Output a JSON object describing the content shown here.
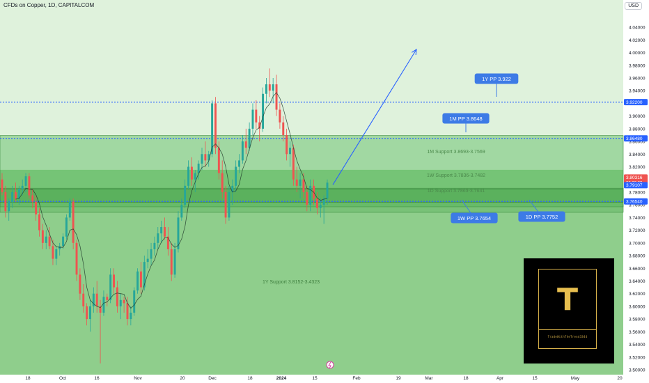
{
  "header": {
    "title": "CFDs on Copper, 1D, CAPITALCOM",
    "currency": "USD"
  },
  "colors": {
    "up": "#26a69a",
    "down": "#ef5350",
    "bg": "#dff2dc",
    "zone": "#8fce8c",
    "line_blue": "#2962ff",
    "label_blue": "#3d7be6",
    "logo_gold": "#e7be4f"
  },
  "watermark": {
    "letter": "T",
    "caption": "TradeWithTheTrend3344"
  },
  "chart_data": {
    "type": "candlestick",
    "title": "CFDs on Copper, 1D, CAPITALCOM",
    "ylim": [
      3.5,
      4.05
    ],
    "y_ticks": [
      "4.04000",
      "4.02000",
      "4.00000",
      "3.98000",
      "3.96000",
      "3.94000",
      "3.92000",
      "3.90000",
      "3.88000",
      "3.86000",
      "3.84000",
      "3.82000",
      "3.80000",
      "3.78000",
      "3.76000",
      "3.74000",
      "3.72000",
      "3.70000",
      "3.68000",
      "3.66000",
      "3.64000",
      "3.62000",
      "3.60000",
      "3.58000",
      "3.56000",
      "3.54000",
      "3.52000",
      "3.50000"
    ],
    "x_ticks": [
      "18",
      "Oct",
      "16",
      "Nov",
      "20",
      "Dec",
      "18",
      "2024",
      "15",
      "Feb",
      "19",
      "Mar",
      "18",
      "Apr",
      "15",
      "May",
      "20"
    ],
    "x_ticks_bold": [
      "2024"
    ],
    "candles_ohlc": [
      [
        3.8,
        3.81,
        3.775,
        3.78
      ],
      [
        3.78,
        3.79,
        3.74,
        3.75
      ],
      [
        3.75,
        3.77,
        3.735,
        3.765
      ],
      [
        3.765,
        3.79,
        3.755,
        3.78
      ],
      [
        3.78,
        3.795,
        3.765,
        3.77
      ],
      [
        3.77,
        3.79,
        3.76,
        3.785
      ],
      [
        3.785,
        3.8,
        3.775,
        3.79
      ],
      [
        3.79,
        3.81,
        3.78,
        3.805
      ],
      [
        3.805,
        3.81,
        3.77,
        3.775
      ],
      [
        3.775,
        3.785,
        3.755,
        3.765
      ],
      [
        3.765,
        3.775,
        3.735,
        3.745
      ],
      [
        3.745,
        3.755,
        3.71,
        3.72
      ],
      [
        3.72,
        3.73,
        3.69,
        3.7
      ],
      [
        3.7,
        3.72,
        3.69,
        3.71
      ],
      [
        3.71,
        3.725,
        3.69,
        3.695
      ],
      [
        3.695,
        3.705,
        3.665,
        3.675
      ],
      [
        3.675,
        3.695,
        3.665,
        3.69
      ],
      [
        3.69,
        3.7,
        3.68,
        3.695
      ],
      [
        3.695,
        3.715,
        3.69,
        3.71
      ],
      [
        3.71,
        3.745,
        3.705,
        3.74
      ],
      [
        3.74,
        3.77,
        3.735,
        3.765
      ],
      [
        3.765,
        3.77,
        3.69,
        3.7
      ],
      [
        3.7,
        3.705,
        3.64,
        3.65
      ],
      [
        3.65,
        3.66,
        3.61,
        3.62
      ],
      [
        3.62,
        3.635,
        3.59,
        3.6
      ],
      [
        3.6,
        3.605,
        3.57,
        3.58
      ],
      [
        3.58,
        3.61,
        3.56,
        3.6
      ],
      [
        3.6,
        3.63,
        3.59,
        3.62
      ],
      [
        3.62,
        3.64,
        3.59,
        3.6
      ],
      [
        3.6,
        3.61,
        3.51,
        3.59
      ],
      [
        3.59,
        3.625,
        3.585,
        3.615
      ],
      [
        3.615,
        3.62,
        3.6,
        3.61
      ],
      [
        3.61,
        3.66,
        3.605,
        3.65
      ],
      [
        3.65,
        3.66,
        3.62,
        3.63
      ],
      [
        3.63,
        3.64,
        3.59,
        3.6
      ],
      [
        3.6,
        3.62,
        3.58,
        3.61
      ],
      [
        3.61,
        3.615,
        3.59,
        3.605
      ],
      [
        3.605,
        3.615,
        3.57,
        3.58
      ],
      [
        3.58,
        3.6,
        3.57,
        3.59
      ],
      [
        3.59,
        3.63,
        3.585,
        3.625
      ],
      [
        3.625,
        3.66,
        3.62,
        3.655
      ],
      [
        3.655,
        3.67,
        3.62,
        3.63
      ],
      [
        3.63,
        3.68,
        3.625,
        3.67
      ],
      [
        3.67,
        3.69,
        3.66,
        3.675
      ],
      [
        3.675,
        3.7,
        3.665,
        3.69
      ],
      [
        3.69,
        3.71,
        3.68,
        3.7
      ],
      [
        3.7,
        3.725,
        3.69,
        3.715
      ],
      [
        3.715,
        3.735,
        3.7,
        3.725
      ],
      [
        3.725,
        3.74,
        3.705,
        3.71
      ],
      [
        3.71,
        3.725,
        3.68,
        3.69
      ],
      [
        3.69,
        3.7,
        3.64,
        3.65
      ],
      [
        3.65,
        3.7,
        3.645,
        3.69
      ],
      [
        3.69,
        3.75,
        3.685,
        3.74
      ],
      [
        3.74,
        3.77,
        3.735,
        3.76
      ],
      [
        3.76,
        3.8,
        3.755,
        3.79
      ],
      [
        3.79,
        3.83,
        3.785,
        3.82
      ],
      [
        3.82,
        3.835,
        3.79,
        3.8
      ],
      [
        3.8,
        3.815,
        3.78,
        3.81
      ],
      [
        3.81,
        3.83,
        3.8,
        3.825
      ],
      [
        3.825,
        3.85,
        3.815,
        3.84
      ],
      [
        3.84,
        3.86,
        3.82,
        3.83
      ],
      [
        3.83,
        3.845,
        3.82,
        3.84
      ],
      [
        3.84,
        3.925,
        3.835,
        3.92
      ],
      [
        3.92,
        3.93,
        3.84,
        3.85
      ],
      [
        3.85,
        3.86,
        3.8,
        3.81
      ],
      [
        3.81,
        3.83,
        3.77,
        3.78
      ],
      [
        3.78,
        3.79,
        3.73,
        3.74
      ],
      [
        3.74,
        3.79,
        3.735,
        3.78
      ],
      [
        3.78,
        3.8,
        3.76,
        3.79
      ],
      [
        3.79,
        3.83,
        3.78,
        3.82
      ],
      [
        3.82,
        3.84,
        3.81,
        3.83
      ],
      [
        3.83,
        3.87,
        3.825,
        3.86
      ],
      [
        3.86,
        3.88,
        3.84,
        3.85
      ],
      [
        3.85,
        3.89,
        3.845,
        3.88
      ],
      [
        3.88,
        3.92,
        3.87,
        3.91
      ],
      [
        3.91,
        3.925,
        3.88,
        3.89
      ],
      [
        3.89,
        3.9,
        3.86,
        3.88
      ],
      [
        3.88,
        3.945,
        3.875,
        3.935
      ],
      [
        3.935,
        3.96,
        3.92,
        3.95
      ],
      [
        3.95,
        3.975,
        3.93,
        3.94
      ],
      [
        3.94,
        3.96,
        3.92,
        3.95
      ],
      [
        3.95,
        3.965,
        3.9,
        3.91
      ],
      [
        3.91,
        3.92,
        3.88,
        3.89
      ],
      [
        3.89,
        3.9,
        3.86,
        3.87
      ],
      [
        3.87,
        3.88,
        3.83,
        3.84
      ],
      [
        3.84,
        3.86,
        3.82,
        3.85
      ],
      [
        3.85,
        3.855,
        3.79,
        3.8
      ],
      [
        3.8,
        3.82,
        3.78,
        3.79
      ],
      [
        3.79,
        3.81,
        3.77,
        3.8
      ],
      [
        3.8,
        3.81,
        3.77,
        3.78
      ],
      [
        3.78,
        3.79,
        3.75,
        3.76
      ],
      [
        3.76,
        3.8,
        3.75,
        3.79
      ],
      [
        3.79,
        3.8,
        3.76,
        3.77
      ],
      [
        3.77,
        3.78,
        3.745,
        3.755
      ],
      [
        3.755,
        3.77,
        3.74,
        3.76
      ],
      [
        3.76,
        3.775,
        3.73,
        3.77
      ],
      [
        3.77,
        3.8,
        3.76,
        3.795
      ]
    ],
    "horizontal_lines": [
      {
        "label": "1Y PP 3.922",
        "value": 3.922,
        "axis_tag": "3.92200"
      },
      {
        "label": "1M PP 3.8648",
        "value": 3.8648,
        "axis_tag": "3.86480"
      },
      {
        "label": "1W PP 3.7654",
        "value": 3.7654,
        "axis_tag": "3.76540"
      },
      {
        "label": "1D PP 3.7752",
        "value": 3.7752
      }
    ],
    "zones": [
      {
        "label": "1Y Support 3.8152-3.4323",
        "top": 3.8152,
        "bottom": 3.4323
      },
      {
        "label": "1M Support 3.8693-3.7569",
        "top": 3.8693,
        "bottom": 3.7569
      },
      {
        "label": "1W Support 3.7836-3.7482",
        "top": 3.7836,
        "bottom": 3.7482
      },
      {
        "label": "1D Support 3.7863-3.7641",
        "top": 3.7863,
        "bottom": 3.7641
      }
    ],
    "price_tags": [
      {
        "text": "3.80316",
        "sub": "22:26:29",
        "value": 3.80316,
        "color": "#ef5350"
      },
      {
        "text": "3.79107",
        "value": 3.79107,
        "color": "#2962ff"
      }
    ],
    "projection_arrow": {
      "from_price": 3.7917,
      "to_price": 4.005
    }
  }
}
